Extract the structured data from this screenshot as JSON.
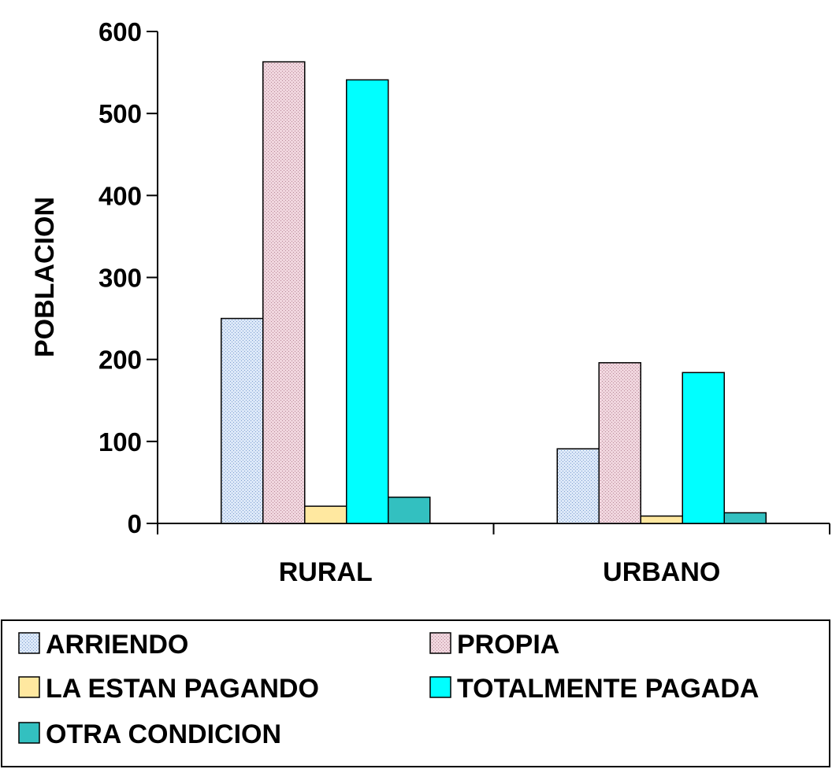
{
  "chart_data": {
    "type": "bar",
    "ylabel": "POBLACION",
    "xlabel": "",
    "ylim": [
      0,
      600
    ],
    "yticks": [
      0,
      100,
      200,
      300,
      400,
      500,
      600
    ],
    "categories": [
      "RURAL",
      "URBANO"
    ],
    "series": [
      {
        "name": "ARRIENDO",
        "values": [
          250,
          91
        ],
        "color": "#dce8f8",
        "pattern": "dots"
      },
      {
        "name": "PROPIA",
        "values": [
          563,
          196
        ],
        "color": "#f0d6de",
        "pattern": "dots"
      },
      {
        "name": "LA ESTAN PAGANDO",
        "values": [
          21,
          9
        ],
        "color": "#ffe8a0",
        "pattern": "none"
      },
      {
        "name": "TOTALMENTE PAGADA",
        "values": [
          541,
          184
        ],
        "color": "#00ffff",
        "pattern": "none"
      },
      {
        "name": "OTRA CONDICION",
        "values": [
          32,
          13
        ],
        "color": "#33c0c0",
        "pattern": "none"
      }
    ],
    "legend_position": "bottom",
    "grid": false
  }
}
